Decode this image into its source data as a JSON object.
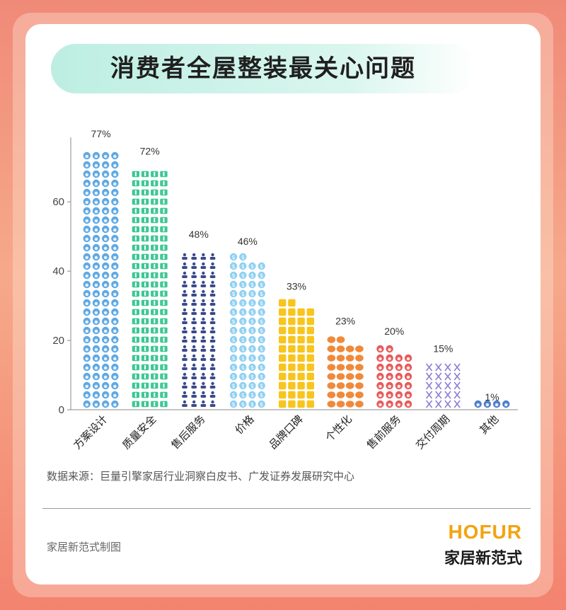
{
  "title": "消费者全屋整装最关心问题",
  "source": "数据来源：巨量引擎家居行业洞察白皮书、广发证券发展研究中心",
  "credit": "家居新范式制图",
  "brand": {
    "en": "HOFUR",
    "cn": "家居新范式"
  },
  "chart_data": {
    "type": "bar",
    "categories": [
      "方案设计",
      "质量安全",
      "售后服务",
      "价格",
      "品牌口碑",
      "个性化",
      "售前服务",
      "交付周期",
      "其他"
    ],
    "values": [
      77,
      72,
      48,
      46,
      33,
      23,
      20,
      15,
      1
    ],
    "labels": [
      "77%",
      "72%",
      "48%",
      "46%",
      "33%",
      "23%",
      "20%",
      "15%",
      "1%"
    ],
    "colors": [
      "#5fa9e3",
      "#3ec795",
      "#3a4a8c",
      "#8fd0f2",
      "#f7c51e",
      "#f0893a",
      "#e85a5a",
      "#8a7fd6",
      "#4d7fcf"
    ],
    "icons": [
      "face-icon",
      "kit-icon",
      "person-icon",
      "coin-icon",
      "square-icon",
      "blob-icon",
      "face-icon",
      "dna-icon",
      "face-icon"
    ],
    "y_ticks": [
      "0",
      "20",
      "40",
      "60"
    ],
    "ylim": [
      0,
      77
    ],
    "grid": false
  }
}
